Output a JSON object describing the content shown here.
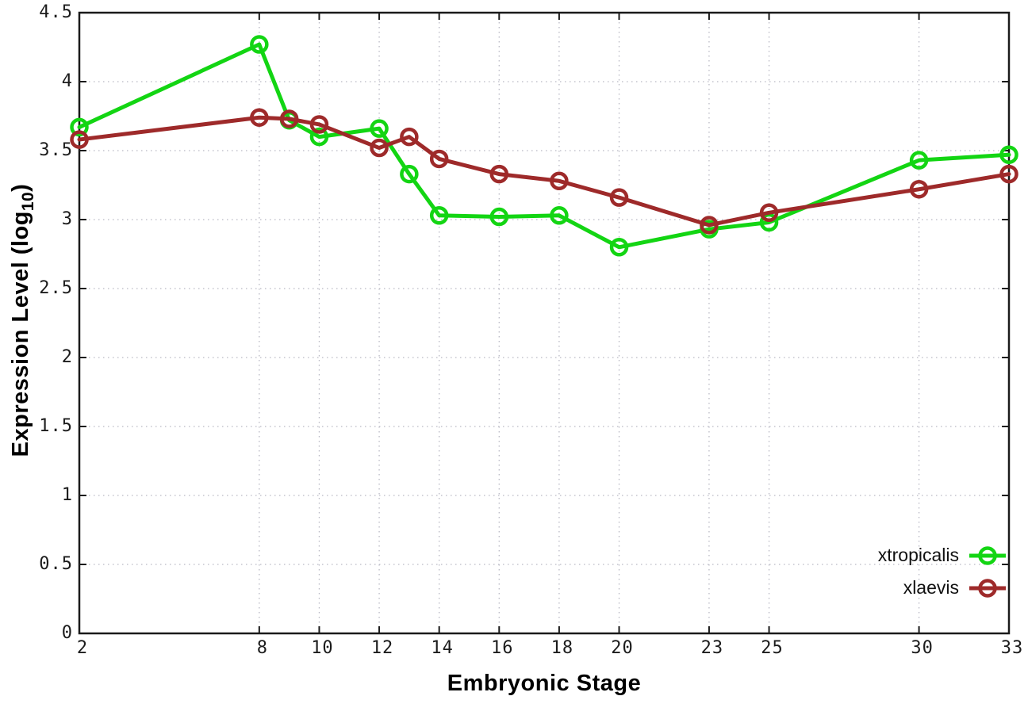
{
  "chart_data": {
    "type": "line",
    "xlabel": "Embryonic Stage",
    "ylabel_main": "Expression Level (log",
    "ylabel_sub": "10",
    "ylabel_close": ")",
    "x_ticks": [
      2,
      8,
      10,
      12,
      14,
      16,
      18,
      20,
      23,
      25,
      30,
      33
    ],
    "y_ticks": [
      0,
      0.5,
      1,
      1.5,
      2,
      2.5,
      3,
      3.5,
      4,
      4.5
    ],
    "xlim": [
      2,
      33
    ],
    "ylim": [
      0,
      4.5
    ],
    "grid": true,
    "grid_style": "dotted",
    "legend_position": "inside-bottom-right",
    "series": [
      {
        "name": "xtropicalis",
        "color": "#13d513",
        "marker": "open-circle",
        "x": [
          2,
          8,
          9,
          10,
          12,
          13,
          14,
          16,
          18,
          20,
          23,
          25,
          30,
          33
        ],
        "y": [
          3.67,
          4.27,
          3.72,
          3.6,
          3.66,
          3.33,
          3.03,
          3.02,
          3.03,
          2.8,
          2.93,
          2.98,
          3.43,
          3.47
        ]
      },
      {
        "name": "xlaevis",
        "color": "#9e2a2a",
        "marker": "open-circle",
        "x": [
          2,
          8,
          9,
          10,
          12,
          13,
          14,
          16,
          18,
          20,
          23,
          25,
          30,
          33
        ],
        "y": [
          3.58,
          3.74,
          3.73,
          3.69,
          3.52,
          3.6,
          3.44,
          3.33,
          3.28,
          3.16,
          2.96,
          3.05,
          3.22,
          3.33
        ]
      }
    ],
    "colors": {
      "axis": "#1a1a1a",
      "grid": "#b9b9c4",
      "background": "#ffffff",
      "tick_text": "#1c1c1c"
    }
  }
}
